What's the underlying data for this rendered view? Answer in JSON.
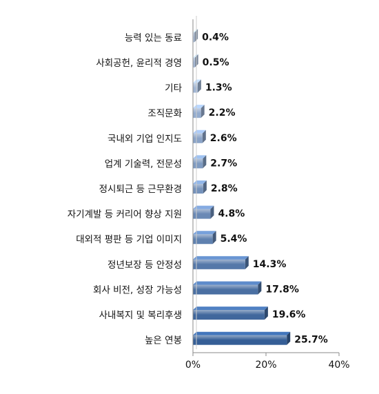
{
  "chart_data": {
    "type": "bar",
    "orientation": "horizontal",
    "categories": [
      "능력 있는 동료",
      "사회공헌, 윤리적 경영",
      "기타",
      "조직문화",
      "국내외 기업 인지도",
      "업계 기술력, 전문성",
      "정시퇴근 등 근무환경",
      "자기계발 등 커리어 향상 지원",
      "대외적 평판 등 기업 이미지",
      "정년보장 등 안정성",
      "회사 비전, 성장 가능성",
      "사내복지 및 복리후생",
      "높은 연봉"
    ],
    "values": [
      0.4,
      0.5,
      1.3,
      2.2,
      2.6,
      2.7,
      2.8,
      4.8,
      5.4,
      14.3,
      17.8,
      19.6,
      25.7
    ],
    "data_labels": [
      "0.4%",
      "0.5%",
      "1.3%",
      "2.2%",
      "2.6%",
      "2.7%",
      "2.8%",
      "4.8%",
      "5.4%",
      "14.3%",
      "17.8%",
      "19.6%",
      "25.7%"
    ],
    "xlim": [
      0,
      40
    ],
    "x_ticks": [
      "0%",
      "20%",
      "40%"
    ],
    "title": "",
    "xlabel": "",
    "ylabel": "",
    "grid": false,
    "legend": "none",
    "colors": {
      "light": "#b4c6e0",
      "dark": "#355e96",
      "axis": "#888888"
    }
  }
}
